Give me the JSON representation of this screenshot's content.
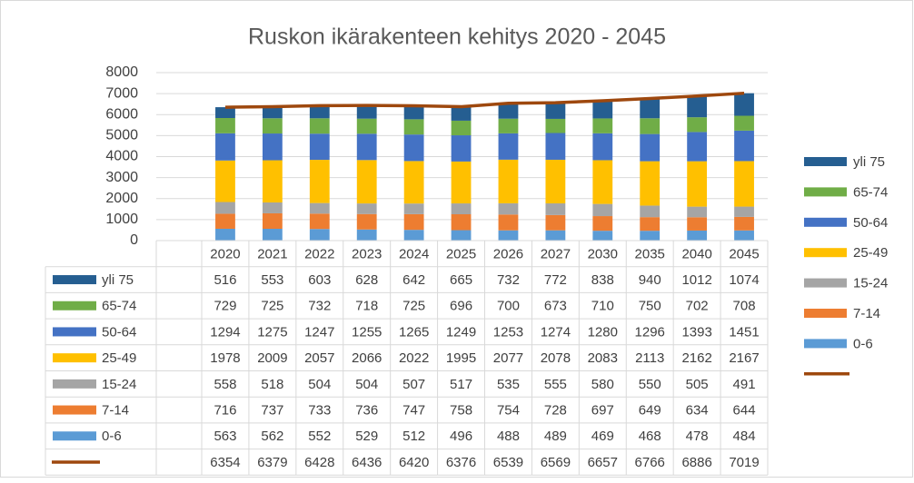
{
  "chart_data": {
    "type": "bar",
    "stacked": true,
    "title": "Ruskon ikärakenteen kehitys 2020 - 2045",
    "categories": [
      "2020",
      "2021",
      "2022",
      "2023",
      "2024",
      "2025",
      "2026",
      "2027",
      "2030",
      "2035",
      "2040",
      "2045"
    ],
    "series": [
      {
        "name": "0-6",
        "color": "#5b9bd5",
        "values": [
          563,
          562,
          552,
          529,
          512,
          496,
          488,
          489,
          469,
          468,
          478,
          484
        ]
      },
      {
        "name": "7-14",
        "color": "#ed7d31",
        "values": [
          716,
          737,
          733,
          736,
          747,
          758,
          754,
          728,
          697,
          649,
          634,
          644
        ]
      },
      {
        "name": "15-24",
        "color": "#a5a5a5",
        "values": [
          558,
          518,
          504,
          504,
          507,
          517,
          535,
          555,
          580,
          550,
          505,
          491
        ]
      },
      {
        "name": "25-49",
        "color": "#ffc000",
        "values": [
          1978,
          2009,
          2057,
          2066,
          2022,
          1995,
          2077,
          2078,
          2083,
          2113,
          2162,
          2167
        ]
      },
      {
        "name": "50-64",
        "color": "#4472c4",
        "values": [
          1294,
          1275,
          1247,
          1255,
          1265,
          1249,
          1253,
          1274,
          1280,
          1296,
          1393,
          1451
        ]
      },
      {
        "name": "65-74",
        "color": "#70ad47",
        "values": [
          729,
          725,
          732,
          718,
          725,
          696,
          700,
          673,
          710,
          750,
          702,
          708
        ]
      },
      {
        "name": "yli 75",
        "color": "#255e91",
        "values": [
          516,
          553,
          603,
          628,
          642,
          665,
          732,
          772,
          838,
          940,
          1012,
          1074
        ]
      },
      {
        "type": "line",
        "color": "#9e480e",
        "values": [
          6354,
          6379,
          6428,
          6436,
          6420,
          6376,
          6539,
          6569,
          6657,
          6766,
          6886,
          7019
        ]
      }
    ],
    "ylim": [
      0,
      8000
    ],
    "yticks": [
      0,
      1000,
      2000,
      3000,
      4000,
      5000,
      6000,
      7000,
      8000
    ],
    "grid": true,
    "legend": "right",
    "data_table": true
  }
}
